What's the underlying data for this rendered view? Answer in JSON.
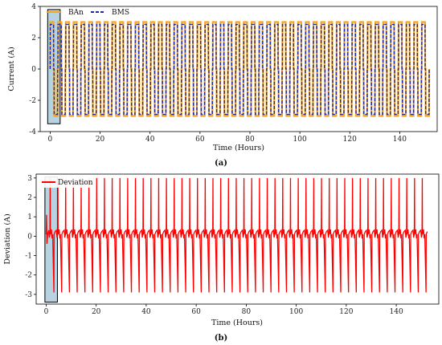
{
  "chart_data": [
    {
      "type": "line",
      "caption": "(a)",
      "xlabel": "Time (Hours)",
      "ylabel": "Current (A)",
      "xlim": [
        -4,
        155
      ],
      "ylim": [
        -4,
        4
      ],
      "xticks": [
        0,
        20,
        40,
        60,
        80,
        100,
        120,
        140
      ],
      "yticks": [
        -4,
        -2,
        0,
        2,
        4
      ],
      "grid": false,
      "legend": "top-left",
      "cycle_period_hours": 3.1,
      "cycles": 49,
      "start_hour": 0,
      "highlight_range_hours": [
        -1,
        4
      ],
      "series": [
        {
          "name": "BAn",
          "color": "#f5a623",
          "style": "solid",
          "high": 3.0,
          "low": -3.0,
          "rest": 0.0
        },
        {
          "name": "BMS",
          "color": "#1f2a9c",
          "style": "dashed",
          "high": 2.85,
          "low": -2.9,
          "rest": 0.0
        }
      ]
    },
    {
      "type": "line",
      "caption": "(b)",
      "xlabel": "Time (Hours)",
      "ylabel": "Deviation (A)",
      "xlim": [
        -4,
        157
      ],
      "ylim": [
        -3.5,
        3.2
      ],
      "xticks": [
        0,
        20,
        40,
        60,
        80,
        100,
        120,
        140
      ],
      "yticks": [
        -3,
        -2,
        -1,
        0,
        1,
        2,
        3
      ],
      "grid": false,
      "legend": "top-left",
      "cycle_period_hours": 3.1,
      "cycles": 49,
      "highlight_range_hours": [
        -0.5,
        4.5
      ],
      "series": [
        {
          "name": "Deviation",
          "color": "#ff0000",
          "baseline": 0.1,
          "spike_high": 3.0,
          "spike_low": -2.9,
          "noise": 0.35
        }
      ]
    }
  ]
}
